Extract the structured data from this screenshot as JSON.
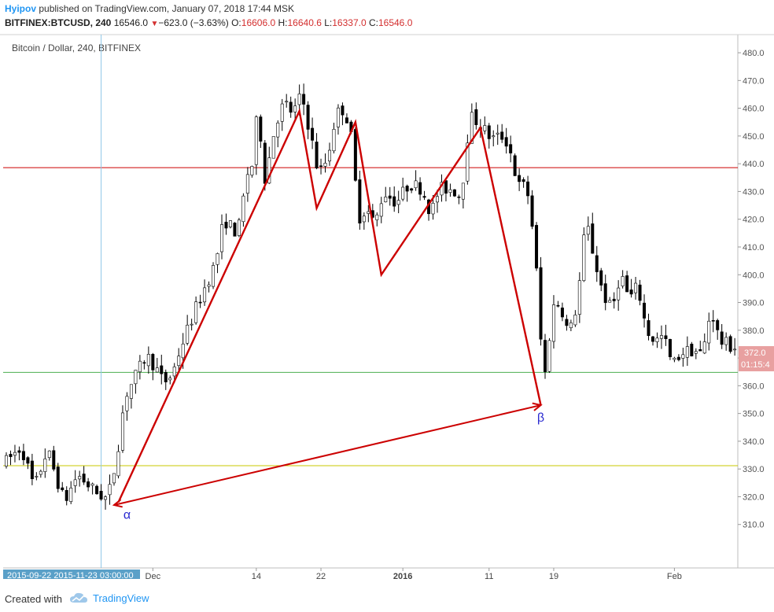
{
  "header": {
    "author": "Hyipov",
    "published_text": "published on TradingView.com, January 07, 2018 17:44 MSK",
    "symbol": "BITFINEX:BTCUSD, 240",
    "last": "16546.0",
    "change": "−623.0 (−3.63%)",
    "o_label": "O:",
    "o": "16606.0",
    "h_label": "H:",
    "h": "16640.6",
    "l_label": "L:",
    "l": "16337.0",
    "c_label": "C:",
    "c": "16546.0"
  },
  "footer": {
    "created_with": "Created with",
    "brand": "TradingView",
    "logo_icon": "tradingview-cloud-icon"
  },
  "colors": {
    "up_candle": "#ffffff",
    "down_candle": "#000000",
    "wick": "#000000",
    "red_line": "#cc0000",
    "green_line": "#4caf50",
    "olive_line": "#c8c800",
    "cursor_line": "#90c8e8",
    "price_tag": "#e8a0a0",
    "axis_text": "#555555"
  },
  "chart_data": {
    "type": "candlestick",
    "title": "Bitcoin / Dollar, 240, BITFINEX",
    "ylim": [
      300,
      482
    ],
    "y_ticks": [
      310,
      320,
      330,
      340,
      350,
      360,
      370,
      380,
      390,
      400,
      410,
      420,
      430,
      440,
      450,
      460,
      470,
      480
    ],
    "x_ticks": [
      {
        "label": "Dec",
        "bold": false
      },
      {
        "label": "14",
        "bold": false
      },
      {
        "label": "22",
        "bold": false
      },
      {
        "label": "2016",
        "bold": true
      },
      {
        "label": "11",
        "bold": false
      },
      {
        "label": "19",
        "bold": false
      },
      {
        "label": "Feb",
        "bold": false
      }
    ],
    "x_tick_bars": [
      34,
      58,
      73,
      92,
      112,
      127,
      155
    ],
    "x_range_label": "2015-09-22 2015-11-23 03:00:00",
    "n_bars": 170,
    "price_waypoints": [
      [
        0,
        332
      ],
      [
        4,
        338
      ],
      [
        7,
        323
      ],
      [
        10,
        337
      ],
      [
        14,
        318
      ],
      [
        17,
        328
      ],
      [
        21,
        322
      ],
      [
        24,
        319
      ],
      [
        26,
        333
      ],
      [
        28,
        356
      ],
      [
        30,
        362
      ],
      [
        33,
        371
      ],
      [
        35,
        367
      ],
      [
        37,
        361
      ],
      [
        39,
        364
      ],
      [
        41,
        374
      ],
      [
        43,
        382
      ],
      [
        45,
        390
      ],
      [
        47,
        397
      ],
      [
        49,
        404
      ],
      [
        51,
        420
      ],
      [
        54,
        415
      ],
      [
        55,
        420
      ],
      [
        56,
        435
      ],
      [
        58,
        441
      ],
      [
        59,
        468
      ],
      [
        60,
        432
      ],
      [
        61,
        438
      ],
      [
        63,
        455
      ],
      [
        65,
        462
      ],
      [
        67,
        458
      ],
      [
        69,
        465
      ],
      [
        71,
        451
      ],
      [
        73,
        436
      ],
      [
        75,
        442
      ],
      [
        77,
        458
      ],
      [
        79,
        460
      ],
      [
        81,
        446
      ],
      [
        82,
        420
      ],
      [
        84,
        424
      ],
      [
        86,
        418
      ],
      [
        88,
        430
      ],
      [
        91,
        426
      ],
      [
        94,
        433
      ],
      [
        97,
        431
      ],
      [
        99,
        422
      ],
      [
        101,
        431
      ],
      [
        104,
        431
      ],
      [
        106,
        428
      ],
      [
        108,
        457
      ],
      [
        110,
        455
      ],
      [
        113,
        449
      ],
      [
        116,
        450
      ],
      [
        118,
        442
      ],
      [
        119,
        432
      ],
      [
        121,
        432
      ],
      [
        122,
        426
      ],
      [
        123,
        410
      ],
      [
        124,
        392
      ],
      [
        125,
        361
      ],
      [
        126,
        368
      ],
      [
        127,
        388
      ],
      [
        129,
        390
      ],
      [
        131,
        378
      ],
      [
        133,
        390
      ],
      [
        135,
        420
      ],
      [
        137,
        405
      ],
      [
        139,
        393
      ],
      [
        141,
        387
      ],
      [
        143,
        401
      ],
      [
        145,
        391
      ],
      [
        147,
        396
      ],
      [
        149,
        380
      ],
      [
        151,
        376
      ],
      [
        153,
        378
      ],
      [
        155,
        367
      ],
      [
        157,
        372
      ],
      [
        160,
        373
      ],
      [
        162,
        371
      ],
      [
        164,
        388
      ],
      [
        166,
        376
      ],
      [
        169,
        374
      ]
    ],
    "horizontal_levels": [
      {
        "price": 438.6,
        "color": "#cc0000"
      },
      {
        "price": 364.8,
        "color": "#4caf50"
      },
      {
        "price": 331.2,
        "color": "#c8c800"
      }
    ],
    "zigzag_prices": [
      {
        "bar": 26,
        "price": 318
      },
      {
        "bar": 68,
        "price": 459
      },
      {
        "bar": 72,
        "price": 424
      },
      {
        "bar": 81,
        "price": 455
      },
      {
        "bar": 87,
        "price": 400
      },
      {
        "bar": 110,
        "price": 453
      },
      {
        "bar": 124,
        "price": 353
      }
    ],
    "arrow_line": {
      "from": {
        "bar": 124,
        "price": 353
      },
      "to": {
        "bar": 25,
        "price": 317
      }
    },
    "annotations": [
      {
        "text": "α",
        "bar": 28,
        "price": 312,
        "color": "#2a2ad0"
      },
      {
        "text": "β",
        "bar": 124,
        "price": 347,
        "color": "#2a2ad0"
      }
    ],
    "price_tag": {
      "price": 372.0,
      "label": "372.0",
      "sublabel": "01:15:4"
    },
    "cursor_bar": 22
  }
}
